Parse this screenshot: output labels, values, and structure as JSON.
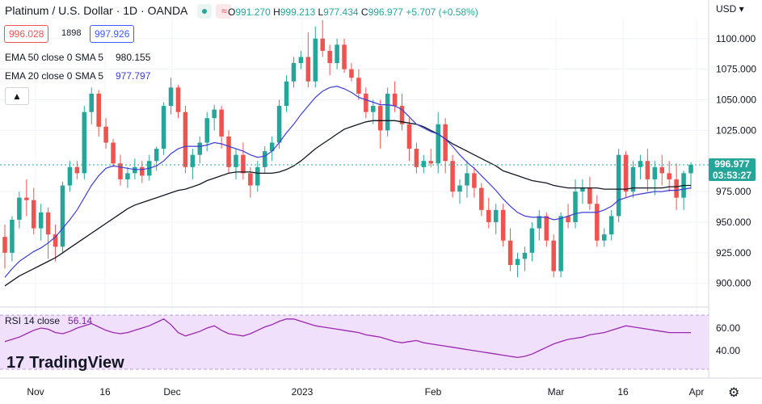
{
  "header": {
    "symbol": "Platinum / U.S. Dollar · 1D · OANDA",
    "ohlc": {
      "o_label": "O",
      "o": "991.270",
      "h_label": "H",
      "h": "999.213",
      "l_label": "L",
      "l": "977.434",
      "c_label": "C",
      "c": "996.977",
      "change": "+5.707 (+0.58%)"
    },
    "bid": "996.028",
    "spread": "1898",
    "ask": "997.926"
  },
  "indicators": [
    {
      "label": "EMA 50 close 0 SMA 5",
      "value": "980.155",
      "color": "#131722"
    },
    {
      "label": "EMA 20 close 0 SMA 5",
      "value": "977.797",
      "color": "#3d3dd6"
    }
  ],
  "rsi": {
    "label": "RSI 14 close",
    "value": "56.14"
  },
  "logo": {
    "mark": "17",
    "text": "TradingView"
  },
  "currency": "USD",
  "last_price": {
    "price": "996.977",
    "countdown": "03:53:27"
  },
  "colors": {
    "up": "#26a69a",
    "down": "#ef5350",
    "ema50": "#131722",
    "ema20": "#3d3dd6",
    "rsi": "#9c27b0",
    "rsi_band": "#f0e0fb"
  },
  "chart_data": {
    "type": "candlestick",
    "x_labels": [
      "Nov",
      "16",
      "Dec",
      "2023",
      "Feb",
      "Mar",
      "16",
      "Apr"
    ],
    "y_ticks": [
      1100,
      1075,
      1050,
      1025,
      1000,
      975,
      950,
      925,
      900
    ],
    "y_tick_labels": [
      "1100.000",
      "1075.000",
      "1050.000",
      "1025.000",
      "975.000",
      "950.000",
      "925.000",
      "900.000"
    ],
    "ylim": [
      882,
      1117
    ],
    "candles": [
      [
        938,
        948,
        912,
        925
      ],
      [
        925,
        955,
        918,
        952
      ],
      [
        952,
        975,
        945,
        970
      ],
      [
        970,
        985,
        955,
        968
      ],
      [
        968,
        978,
        940,
        945
      ],
      [
        945,
        965,
        935,
        958
      ],
      [
        958,
        962,
        920,
        940
      ],
      [
        940,
        948,
        918,
        930
      ],
      [
        930,
        983,
        925,
        980
      ],
      [
        980,
        1000,
        975,
        995
      ],
      [
        995,
        1000,
        985,
        990
      ],
      [
        990,
        1045,
        985,
        1040
      ],
      [
        1040,
        1060,
        1030,
        1055
      ],
      [
        1055,
        1058,
        1020,
        1028
      ],
      [
        1028,
        1035,
        1010,
        1015
      ],
      [
        1015,
        1018,
        995,
        998
      ],
      [
        998,
        1005,
        980,
        985
      ],
      [
        985,
        995,
        978,
        990
      ],
      [
        990,
        1002,
        985,
        995
      ],
      [
        995,
        1000,
        982,
        988
      ],
      [
        988,
        1005,
        984,
        1000
      ],
      [
        1000,
        1012,
        992,
        1010
      ],
      [
        1010,
        1048,
        1005,
        1045
      ],
      [
        1045,
        1068,
        1038,
        1060
      ],
      [
        1060,
        1062,
        1035,
        1040
      ],
      [
        1040,
        1045,
        990,
        995
      ],
      [
        995,
        1010,
        985,
        1005
      ],
      [
        1005,
        1020,
        998,
        1015
      ],
      [
        1015,
        1040,
        1008,
        1035
      ],
      [
        1035,
        1046,
        1025,
        1042
      ],
      [
        1042,
        1045,
        1010,
        1020
      ],
      [
        1020,
        1025,
        990,
        995
      ],
      [
        995,
        1010,
        985,
        1005
      ],
      [
        1005,
        1015,
        985,
        990
      ],
      [
        990,
        995,
        970,
        980
      ],
      [
        980,
        1000,
        975,
        995
      ],
      [
        995,
        1012,
        990,
        1008
      ],
      [
        1008,
        1020,
        1000,
        1015
      ],
      [
        1015,
        1050,
        1010,
        1045
      ],
      [
        1045,
        1070,
        1040,
        1065
      ],
      [
        1065,
        1085,
        1060,
        1080
      ],
      [
        1080,
        1090,
        1075,
        1085
      ],
      [
        1085,
        1105,
        1060,
        1065
      ],
      [
        1065,
        1110,
        1060,
        1100
      ],
      [
        1100,
        1115,
        1085,
        1090
      ],
      [
        1090,
        1095,
        1070,
        1080
      ],
      [
        1080,
        1100,
        1075,
        1095
      ],
      [
        1095,
        1100,
        1072,
        1075
      ],
      [
        1075,
        1080,
        1065,
        1068
      ],
      [
        1068,
        1075,
        1050,
        1055
      ],
      [
        1055,
        1060,
        1035,
        1040
      ],
      [
        1040,
        1050,
        1030,
        1045
      ],
      [
        1045,
        1050,
        1010,
        1025
      ],
      [
        1025,
        1060,
        1020,
        1055
      ],
      [
        1055,
        1065,
        1040,
        1045
      ],
      [
        1045,
        1055,
        1025,
        1030
      ],
      [
        1030,
        1035,
        1000,
        1010
      ],
      [
        1010,
        1015,
        990,
        995
      ],
      [
        995,
        1005,
        990,
        1000
      ],
      [
        1000,
        1010,
        995,
        998
      ],
      [
        998,
        1040,
        990,
        1030
      ],
      [
        1030,
        1035,
        990,
        1000
      ],
      [
        1000,
        1005,
        970,
        975
      ],
      [
        975,
        985,
        965,
        980
      ],
      [
        980,
        1000,
        970,
        990
      ],
      [
        990,
        995,
        970,
        978
      ],
      [
        978,
        982,
        955,
        960
      ],
      [
        960,
        970,
        945,
        950
      ],
      [
        950,
        965,
        940,
        960
      ],
      [
        960,
        965,
        930,
        935
      ],
      [
        935,
        945,
        910,
        915
      ],
      [
        915,
        925,
        905,
        920
      ],
      [
        920,
        930,
        910,
        925
      ],
      [
        925,
        950,
        918,
        945
      ],
      [
        945,
        960,
        935,
        955
      ],
      [
        955,
        958,
        930,
        935
      ],
      [
        935,
        940,
        905,
        910
      ],
      [
        910,
        958,
        905,
        955
      ],
      [
        955,
        965,
        945,
        950
      ],
      [
        950,
        985,
        945,
        975
      ],
      [
        975,
        985,
        965,
        978
      ],
      [
        978,
        987,
        960,
        965
      ],
      [
        965,
        972,
        930,
        935
      ],
      [
        935,
        945,
        930,
        940
      ],
      [
        940,
        960,
        935,
        955
      ],
      [
        955,
        1010,
        950,
        1005
      ],
      [
        1005,
        1008,
        970,
        975
      ],
      [
        975,
        1000,
        970,
        995
      ],
      [
        995,
        1005,
        985,
        1000
      ],
      [
        1000,
        1010,
        975,
        985
      ],
      [
        985,
        1000,
        972,
        995
      ],
      [
        995,
        1005,
        980,
        990
      ],
      [
        990,
        1000,
        975,
        985
      ],
      [
        985,
        998,
        960,
        970
      ],
      [
        970,
        992,
        960,
        990
      ],
      [
        990,
        999,
        977,
        997
      ]
    ],
    "ema50": [
      898,
      902,
      906,
      909,
      912,
      915,
      918,
      921,
      925,
      929,
      933,
      937,
      941,
      945,
      949,
      953,
      957,
      961,
      964,
      966,
      968,
      970,
      972,
      974,
      976,
      977,
      979,
      981,
      984,
      986,
      988,
      990,
      991,
      991,
      991,
      990,
      990,
      990,
      991,
      993,
      996,
      1000,
      1005,
      1010,
      1014,
      1018,
      1022,
      1026,
      1028,
      1030,
      1032,
      1033,
      1033,
      1033,
      1033,
      1032,
      1031,
      1030,
      1028,
      1025,
      1022,
      1018,
      1014,
      1011,
      1008,
      1005,
      1002,
      999,
      996,
      992,
      990,
      988,
      986,
      984,
      983,
      982,
      980,
      979,
      978,
      978,
      978,
      978,
      978,
      977,
      977,
      977,
      977,
      978,
      978,
      978,
      978,
      978,
      979,
      979,
      980,
      980
    ],
    "ema20": [
      905,
      912,
      918,
      922,
      926,
      929,
      933,
      938,
      945,
      952,
      960,
      970,
      980,
      988,
      994,
      996,
      995,
      994,
      993,
      993,
      994,
      996,
      1000,
      1006,
      1010,
      1012,
      1012,
      1012,
      1013,
      1015,
      1014,
      1012,
      1010,
      1008,
      1005,
      1003,
      1004,
      1008,
      1015,
      1023,
      1030,
      1038,
      1045,
      1052,
      1057,
      1060,
      1061,
      1059,
      1056,
      1052,
      1050,
      1048,
      1046,
      1046,
      1045,
      1042,
      1036,
      1030,
      1027,
      1024,
      1022,
      1018,
      1012,
      1005,
      999,
      994,
      988,
      982,
      976,
      969,
      963,
      958,
      955,
      954,
      954,
      954,
      952,
      953,
      955,
      957,
      958,
      958,
      958,
      960,
      963,
      968,
      970,
      972,
      973,
      974,
      975,
      975,
      976,
      976,
      977,
      978
    ],
    "rsi": [
      48,
      50,
      52,
      55,
      58,
      60,
      59,
      56,
      55,
      57,
      60,
      62,
      64,
      61,
      58,
      56,
      55,
      56,
      58,
      60,
      62,
      65,
      68,
      63,
      56,
      53,
      55,
      57,
      60,
      62,
      58,
      55,
      54,
      53,
      55,
      58,
      61,
      63,
      66,
      68,
      68,
      66,
      64,
      62,
      61,
      60,
      59,
      58,
      57,
      56,
      54,
      53,
      52,
      50,
      48,
      47,
      48,
      49,
      47,
      46,
      45,
      44,
      43,
      42,
      41,
      40,
      39,
      38,
      37,
      36,
      35,
      34,
      35,
      37,
      40,
      43,
      46,
      48,
      50,
      51,
      52,
      54,
      55,
      56,
      58,
      60,
      62,
      61,
      60,
      59,
      58,
      57,
      56,
      56,
      56,
      56
    ],
    "rsi_ticks": [
      60,
      40
    ],
    "rsi_ylim": [
      20,
      75
    ]
  }
}
